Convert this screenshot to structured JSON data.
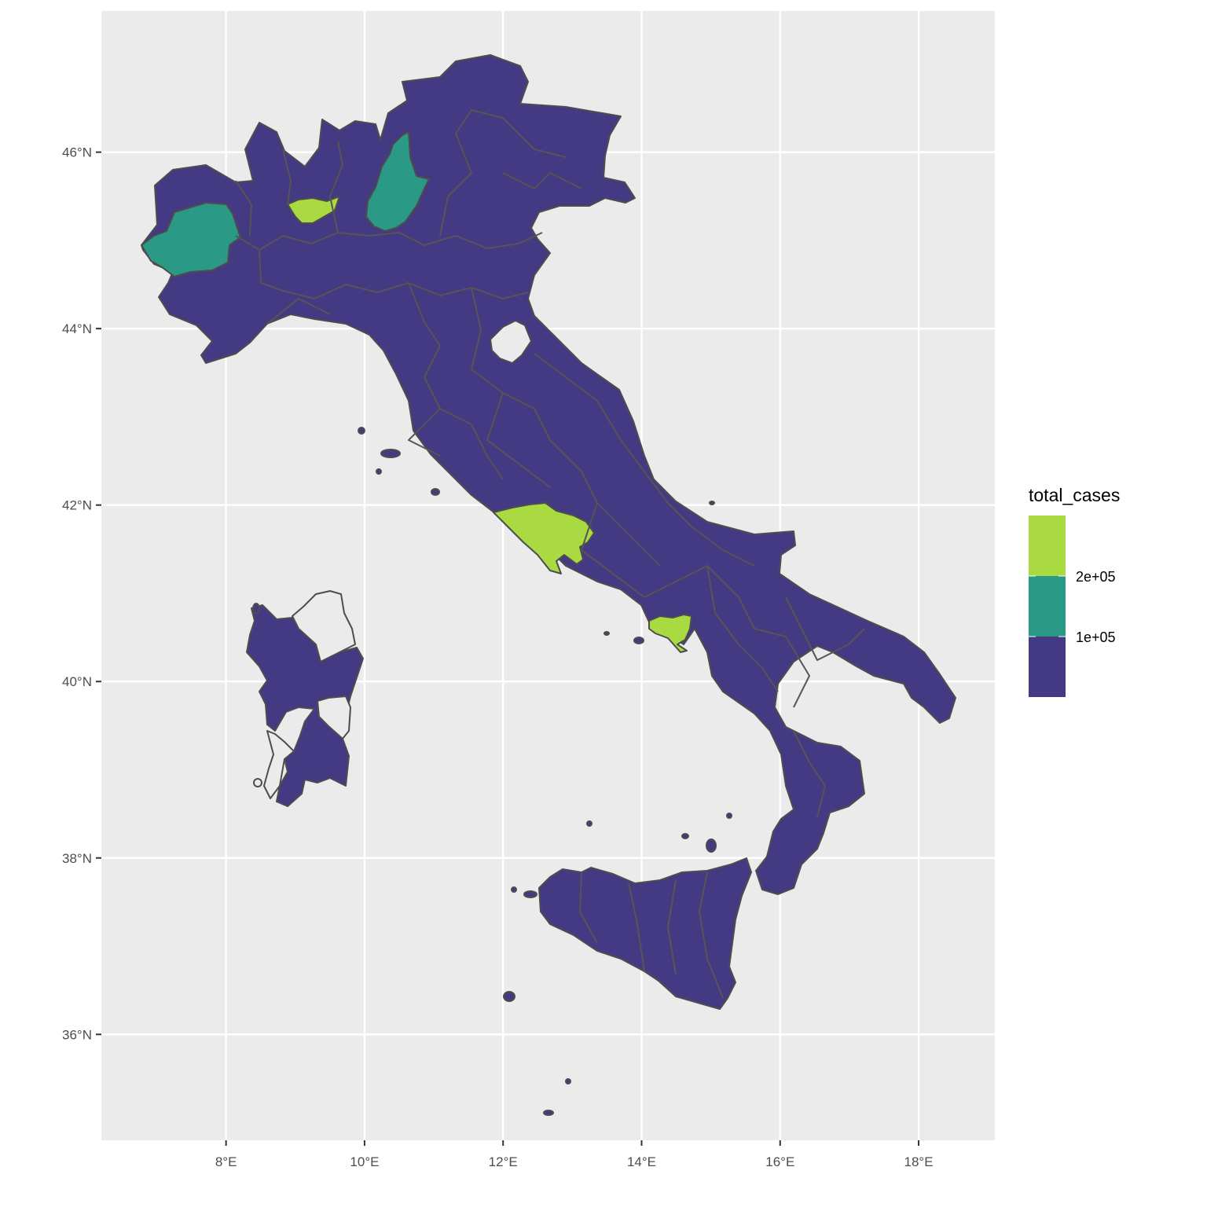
{
  "map": {
    "x_ticks": [
      "8°E",
      "10°E",
      "12°E",
      "14°E",
      "16°E",
      "18°E"
    ],
    "y_ticks": [
      "46°N",
      "44°N",
      "42°N",
      "40°N",
      "38°N",
      "36°N"
    ],
    "x_tick_values": [
      8,
      10,
      12,
      14,
      16,
      18
    ],
    "y_tick_values": [
      46,
      44,
      42,
      40,
      38,
      36
    ],
    "xlim": [
      6.2,
      19.1
    ],
    "ylim": [
      34.8,
      47.6
    ],
    "grid": true,
    "colors": {
      "panel_background": "#ebebeb",
      "grid_lines": "#ffffff",
      "region_border": "#4d4d4d",
      "low": "#443a83",
      "mid": "#2a9a86",
      "high": "#a9da42",
      "no_data": "#ebebeb"
    }
  },
  "legend": {
    "title": "total_cases",
    "labels": [
      "2e+05",
      "1e+05"
    ],
    "bins": [
      "high",
      "mid",
      "low"
    ],
    "placement": "right"
  },
  "highlighted_regions": [
    {
      "label": "",
      "bin": "mid",
      "lon": 7.2,
      "lat": 45.1
    },
    {
      "label": "",
      "bin": "high",
      "lon": 9.2,
      "lat": 45.5
    },
    {
      "label": "",
      "bin": "mid",
      "lon": 10.2,
      "lat": 45.8
    },
    {
      "label": "",
      "bin": "high",
      "lon": 12.6,
      "lat": 41.8
    },
    {
      "label": "",
      "bin": "high",
      "lon": 14.3,
      "lat": 40.9
    }
  ]
}
